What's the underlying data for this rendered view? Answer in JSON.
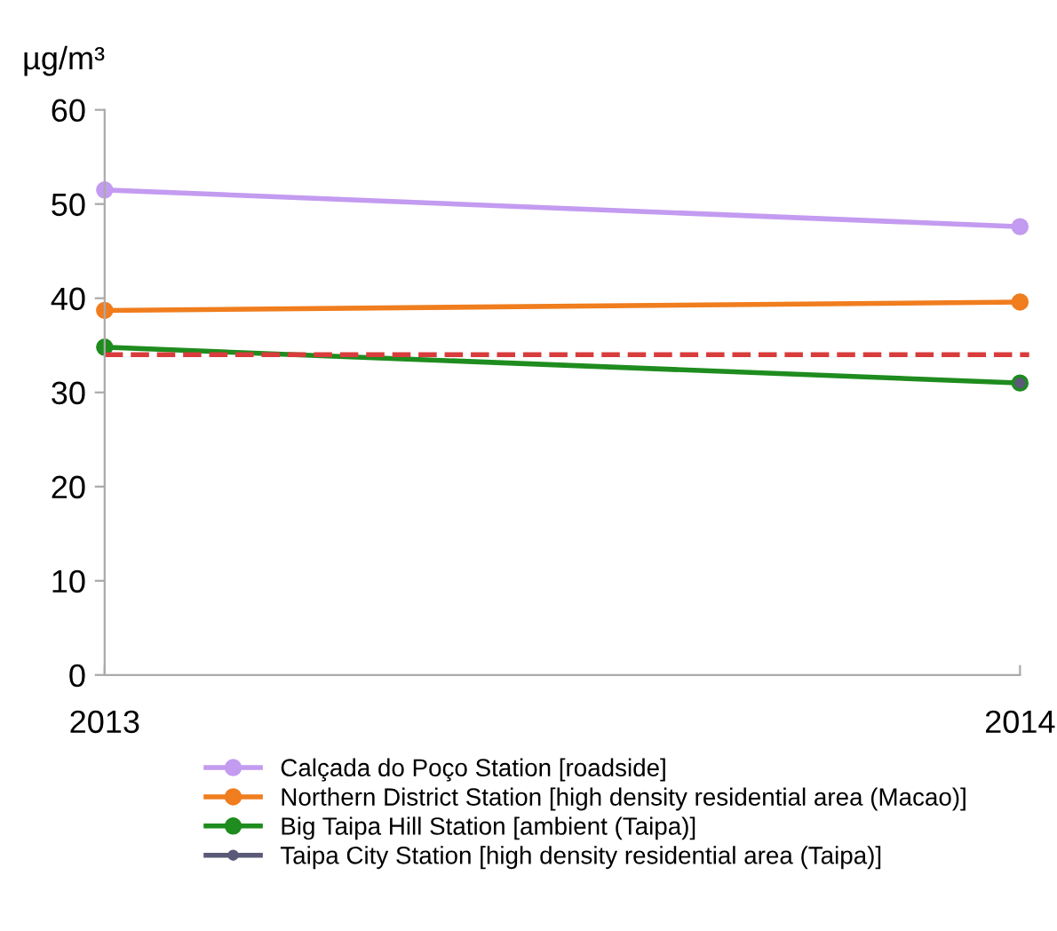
{
  "chart_data": {
    "type": "line",
    "ylabel": "µg/m³",
    "categories": [
      "2013",
      "2014"
    ],
    "series": [
      {
        "name": "Calçada do Poço Station [roadside]",
        "color": "#c39bf0",
        "values": [
          51.5,
          47.6
        ]
      },
      {
        "name": "Northern District Station [high density residential area (Macao)]",
        "color": "#f07d1e",
        "values": [
          38.7,
          39.6
        ]
      },
      {
        "name": "Big Taipa Hill Station [ambient (Taipa)]",
        "color": "#1e8c1e",
        "values": [
          34.8,
          31.0
        ]
      },
      {
        "name": "Taipa City Station [high density residential area (Taipa)]",
        "color": "#5a5a78",
        "values": [
          null,
          31.0
        ]
      }
    ],
    "ylim": [
      0,
      60
    ],
    "yticks": [
      0,
      10,
      20,
      30,
      40,
      50,
      60
    ],
    "ref_lines": [
      {
        "axis": "y",
        "value": 34,
        "label": null,
        "color": "#d93c3c",
        "line_style": "dashed"
      }
    ],
    "grid": false,
    "legend": "bottom",
    "marker": "circle",
    "line_style": "solid"
  }
}
